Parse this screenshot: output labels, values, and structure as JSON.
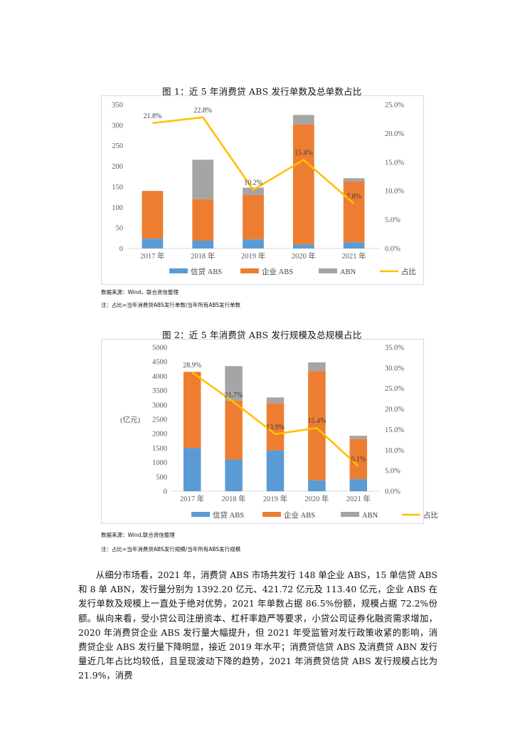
{
  "figure1": {
    "title": "图 1：近 5 年消费贷 ABS 发行单数及总单数占比",
    "source": "数据来源：Wind，联合资信整理",
    "note": "注：占比=当年消费贷ABS发行单数/当年所有ABS发行单数"
  },
  "figure2": {
    "title": "图 2：近 5 年消费贷 ABS 发行规模及总规模占比",
    "source": "数据来源：Wind,联合资信整理",
    "note": "注：占比=当年消费贷ABS发行规模/当年所有ABS发行规模"
  },
  "chart_data": [
    {
      "type": "bar",
      "stacked": true,
      "title": "图 1：近 5 年消费贷 ABS 发行单数及总单数占比",
      "categories": [
        "2017 年",
        "2018 年",
        "2019 年",
        "2020 年",
        "2021 年"
      ],
      "series": [
        {
          "name": "信贷 ABS",
          "kind": "bar",
          "color": "#5B9BD5",
          "values": [
            24,
            19,
            22,
            10,
            15
          ]
        },
        {
          "name": "企业 ABS",
          "kind": "bar",
          "color": "#ED7D31",
          "values": [
            116,
            101,
            108,
            292,
            148
          ]
        },
        {
          "name": "ABN",
          "kind": "bar",
          "color": "#A5A5A5",
          "values": [
            0,
            96,
            18,
            23,
            8
          ]
        },
        {
          "name": "占比",
          "kind": "line",
          "axis": "right",
          "color": "#FFC000",
          "values": [
            21.8,
            22.8,
            10.2,
            15.4,
            7.8
          ],
          "labels": [
            "21.8%",
            "22.8%",
            "10.2%",
            "15.4%",
            "7.8%"
          ]
        }
      ],
      "ylim": [
        0,
        350
      ],
      "yticks": [
        0,
        50,
        100,
        150,
        200,
        250,
        300,
        350
      ],
      "ylabel": "",
      "y2lim": [
        0,
        25
      ],
      "y2ticks": [
        "0.0%",
        "5.0%",
        "10.0%",
        "15.0%",
        "20.0%",
        "25.0%"
      ],
      "legend": "bottom"
    },
    {
      "type": "bar",
      "stacked": true,
      "title": "图 2：近 5 年消费贷 ABS 发行规模及总规模占比",
      "categories": [
        "2017 年",
        "2018 年",
        "2019 年",
        "2020 年",
        "2021 年"
      ],
      "series": [
        {
          "name": "信贷 ABS",
          "kind": "bar",
          "color": "#5B9BD5",
          "values": [
            1500,
            1100,
            1420,
            380,
            421.72
          ]
        },
        {
          "name": "企业 ABS",
          "kind": "bar",
          "color": "#ED7D31",
          "values": [
            2650,
            2050,
            1640,
            3800,
            1392.2
          ]
        },
        {
          "name": "ABN",
          "kind": "bar",
          "color": "#A5A5A5",
          "values": [
            0,
            1200,
            200,
            300,
            113.4
          ]
        },
        {
          "name": "占比",
          "kind": "line",
          "axis": "right",
          "color": "#FFC000",
          "values": [
            28.9,
            21.7,
            13.9,
            15.4,
            6.1
          ],
          "labels": [
            "28.9%",
            "21.7%",
            "13.9%",
            "15.4%",
            "6.1%"
          ]
        }
      ],
      "ylim": [
        0,
        5000
      ],
      "yticks": [
        0,
        500,
        1000,
        1500,
        2000,
        2500,
        3000,
        3500,
        4000,
        4500,
        5000
      ],
      "ylabel": "(亿元)",
      "y2lim": [
        0,
        35
      ],
      "y2ticks": [
        "0.0%",
        "5.0%",
        "10.0%",
        "15.0%",
        "20.0%",
        "25.0%",
        "30.0%",
        "35.0%"
      ],
      "legend": "bottom"
    }
  ],
  "body": {
    "paragraph": "从细分市场看，2021 年，消费贷 ABS 市场共发行 148 单企业 ABS，15 单信贷 ABS 和 8 单 ABN，发行量分别为 1392.20 亿元、421.72 亿元及 113.40 亿元，企业 ABS 在发行单数及规模上一直处于绝对优势，2021 年单数占据 86.5%份额，规模占据 72.2%份额。纵向来看，受小贷公司注册资本、杠杆率趋严等要求，小贷公司证券化融资需求增加，2020 年消费贷企业 ABS 发行量大幅提升，但 2021 年受监管对发行政策收紧的影响，消费贷企业 ABS 发行量下降明显，接近 2019 年水平；消费贷信贷 ABS 及消费贷 ABN 发行量近几年占比均较低，且呈现波动下降的趋势，2021 年消费贷信贷 ABS 发行规模占比为 21.9%，消费"
  }
}
